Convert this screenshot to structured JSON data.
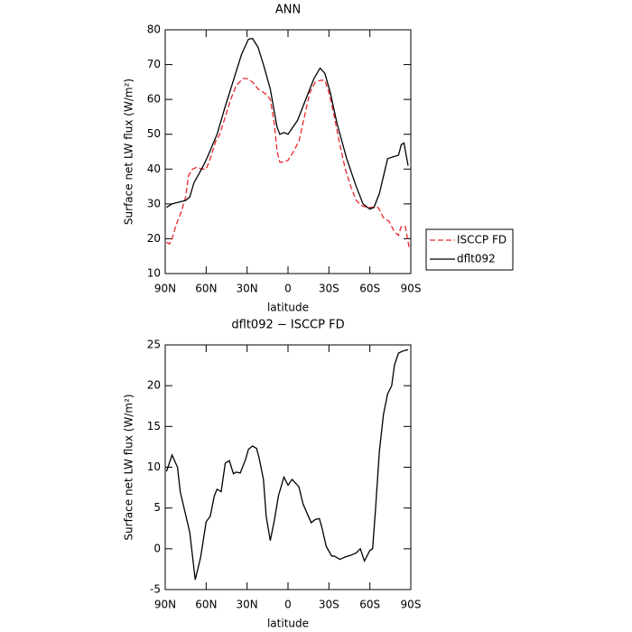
{
  "chart_data": [
    {
      "type": "line",
      "title": "ANN",
      "xlabel": "latitude",
      "ylabel": "Surface net LW flux (W/m²)",
      "xlim": [
        90,
        -90
      ],
      "xticks": [
        {
          "value": 90,
          "label": "90N"
        },
        {
          "value": 60,
          "label": "60N"
        },
        {
          "value": 30,
          "label": "30N"
        },
        0,
        {
          "value": -30,
          "label": "30S"
        },
        {
          "value": -60,
          "label": "60S"
        },
        {
          "value": -90,
          "label": "90S"
        }
      ],
      "ylim": [
        10,
        80
      ],
      "yticks": [
        10,
        20,
        30,
        40,
        50,
        60,
        70,
        80
      ],
      "legend": "outside-right",
      "series": [
        {
          "name": "ISCCP FD",
          "color": "#e8282b",
          "line_style": "dashed",
          "x": [
            89,
            87,
            85,
            82,
            78,
            75,
            73,
            70,
            67,
            63,
            60,
            57,
            53,
            50,
            46,
            42,
            38,
            33,
            30,
            26,
            22,
            18,
            16,
            13,
            10,
            8,
            6,
            3,
            0,
            -4,
            -8,
            -12,
            -16,
            -20,
            -24,
            -27,
            -30,
            -34,
            -38,
            -42,
            -46,
            -50,
            -54,
            -58,
            -62,
            -66,
            -70,
            -74,
            -78,
            -81,
            -83,
            -86,
            -89
          ],
          "values": [
            19,
            18.5,
            20,
            24,
            28,
            32,
            38,
            40,
            40.5,
            40,
            40,
            43,
            48,
            50,
            55,
            60,
            64,
            66,
            66,
            65,
            63,
            62,
            61.5,
            60,
            53,
            45,
            42,
            42,
            42.5,
            45,
            48,
            55,
            62,
            65,
            65.5,
            65.5,
            62,
            55,
            47,
            40,
            35,
            31,
            29.5,
            29,
            29,
            29,
            26,
            25,
            22,
            21,
            23.5,
            23.5,
            17
          ]
        },
        {
          "name": "dflt092",
          "color": "#000000",
          "line_style": "solid",
          "x": [
            89,
            85,
            80,
            75,
            72,
            69,
            62,
            59,
            52,
            46,
            38,
            34,
            29,
            26,
            22,
            18,
            13,
            8,
            6,
            3,
            0,
            -7,
            -13,
            -19,
            -23.5,
            -27,
            -31,
            -36,
            -43,
            -50,
            -55,
            -60,
            -63,
            -67,
            -73,
            -77,
            -81,
            -83,
            -85,
            -88
          ],
          "values": [
            29,
            30,
            30.5,
            31,
            32,
            36,
            41,
            43.5,
            50,
            58,
            68,
            73,
            77.3,
            77.5,
            75,
            70,
            63,
            52,
            50,
            50.5,
            50,
            54,
            60,
            66,
            69,
            67.5,
            62,
            53,
            43,
            35,
            30,
            28.5,
            29,
            33,
            43,
            43.5,
            44,
            47,
            47.5,
            41
          ]
        }
      ]
    },
    {
      "type": "line",
      "title": "dflt092 − ISCCP FD",
      "xlabel": "latitude",
      "ylabel": "Surface net LW flux (W/m²)",
      "xlim": [
        90,
        -90
      ],
      "xticks": [
        {
          "value": 90,
          "label": "90N"
        },
        {
          "value": 60,
          "label": "60N"
        },
        {
          "value": 30,
          "label": "30N"
        },
        0,
        {
          "value": -30,
          "label": "30S"
        },
        {
          "value": -60,
          "label": "60S"
        },
        {
          "value": -90,
          "label": "90S"
        }
      ],
      "ylim": [
        -5,
        25
      ],
      "yticks": [
        -5,
        0,
        5,
        10,
        15,
        20,
        25
      ],
      "color": "#000000",
      "x": [
        89,
        85,
        81,
        79,
        72,
        68,
        64,
        60,
        57,
        54,
        52,
        49,
        46,
        43,
        40,
        38,
        35,
        31,
        29,
        26,
        23,
        21,
        18,
        16,
        13,
        10,
        7,
        3,
        0,
        -3,
        -8,
        -11,
        -17,
        -20,
        -23,
        -25,
        -28,
        -32,
        -34,
        -38,
        -42,
        -46,
        -50,
        -53,
        -56,
        -60,
        -62,
        -64,
        -67,
        -70,
        -73,
        -76,
        -78,
        -81,
        -85,
        -88
      ],
      "values": [
        9.5,
        11.5,
        10,
        7,
        2,
        -3.8,
        -1,
        3.3,
        4,
        6.5,
        7.3,
        7,
        10.5,
        10.8,
        9.2,
        9.4,
        9.3,
        11,
        12.2,
        12.6,
        12.3,
        11,
        8.5,
        4,
        1,
        3.5,
        6.5,
        8.8,
        7.8,
        8.5,
        7.6,
        5.5,
        3.2,
        3.6,
        3.7,
        2.5,
        0.3,
        -0.9,
        -0.9,
        -1.3,
        -1,
        -0.8,
        -0.5,
        0,
        -1.5,
        -0.2,
        0,
        4.5,
        12,
        16.5,
        19,
        20,
        22.5,
        24,
        24.3,
        24.4
      ]
    }
  ]
}
